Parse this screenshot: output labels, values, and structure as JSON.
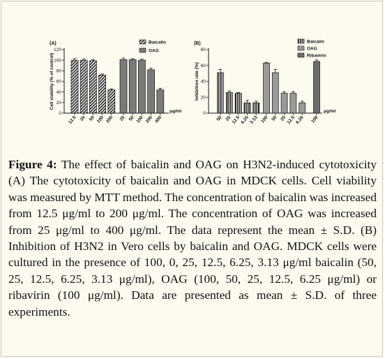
{
  "caption": {
    "label": "Figure 4:",
    "text": "The effect of baicalin and OAG on H3N2-induced cytotoxicity (A) The cytotoxicity of baicalin and OAG in MDCK cells. Cell viability was measured by MTT method. The concentration of baicalin was increased from 12.5 μg/ml to 200 μg/ml. The concentration of OAG was increased from 25 μg/ml to 400 μg/ml. The data represent the mean ± S.D. (B) Inhibition of H3N2 in Vero cells by baicalin and OAG. MDCK cells were cultured in the presence of 100, 0, 25, 12.5, 6.25, 3.13 μg/ml baicalin (50, 25, 12.5, 6.25, 3.13 μg/ml), OAG (100, 50, 25, 12.5, 6.25 μg/ml) or ribavirin (100 μg/ml). Data are presented as mean ± S.D. of three experiments."
  },
  "chart_data": [
    {
      "panel": "(A)",
      "type": "bar",
      "ylabel": "Cell viability (% of control)",
      "ylim": [
        0,
        120
      ],
      "yticks": [
        0,
        20,
        40,
        60,
        80,
        100,
        120
      ],
      "unit_label": "μg/ml",
      "legend_position": "top-right",
      "series": [
        {
          "name": "Baicalin",
          "categories": [
            "12.5",
            "25",
            "50",
            "100",
            "200"
          ],
          "values": [
            100,
            100,
            99,
            72,
            44
          ],
          "errors": [
            3,
            2,
            2,
            2,
            2
          ]
        },
        {
          "name": "OAG",
          "categories": [
            "25",
            "50",
            "100",
            "200",
            "400"
          ],
          "values": [
            101,
            101,
            100,
            82,
            44
          ],
          "errors": [
            3,
            2,
            2,
            3,
            3
          ]
        }
      ]
    },
    {
      "panel": "(B)",
      "type": "bar",
      "ylabel": "Inhibition rate (%)",
      "ylim": [
        0,
        80
      ],
      "yticks": [
        0,
        20,
        40,
        60,
        80
      ],
      "unit_label": "μg/ml",
      "legend_position": "top-right",
      "series": [
        {
          "name": "Baicalin",
          "categories": [
            "50",
            "25",
            "12.5",
            "6.25",
            "3.13"
          ],
          "values": [
            51,
            26,
            25,
            13,
            13
          ],
          "errors": [
            4,
            2,
            1,
            3,
            2
          ]
        },
        {
          "name": "OAG",
          "categories": [
            "100",
            "50",
            "25",
            "12.5",
            "6.25"
          ],
          "values": [
            63,
            51,
            25,
            25,
            13
          ],
          "errors": [
            1,
            4,
            2,
            2,
            2
          ]
        },
        {
          "name": "Ribavirin",
          "categories": [
            "100"
          ],
          "values": [
            65
          ],
          "errors": [
            2
          ]
        }
      ]
    }
  ]
}
